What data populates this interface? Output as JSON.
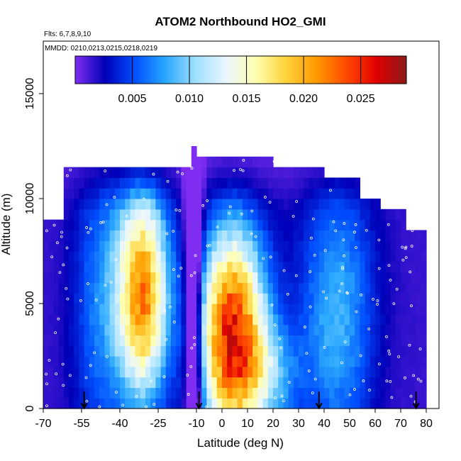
{
  "chart_data": {
    "type": "heatmap",
    "title": "ATOM2 Northbound HO2_GMI",
    "flights_note": "Flts: 6,7,8,9,10",
    "dates_note": "MMDD: 0210,0213,0215,0218,0219",
    "xlabel": "Latitude (deg N)",
    "ylabel": "Altitude (m)",
    "xlim": [
      -70,
      85
    ],
    "ylim": [
      0,
      17500
    ],
    "x_ticks": [
      "-70",
      "-55",
      "-40",
      "-25",
      "-10",
      "0",
      "10",
      "20",
      "30",
      "40",
      "50",
      "60",
      "70",
      "80"
    ],
    "x_tick_values": [
      -70,
      -55,
      -40,
      -25,
      -10,
      0,
      10,
      20,
      30,
      40,
      50,
      60,
      70,
      80
    ],
    "y_ticks": [
      "0",
      "5000",
      "10000",
      "15000"
    ],
    "y_tick_values": [
      0,
      5000,
      10000,
      15000
    ],
    "colorbar": {
      "min": 0.0,
      "max": 0.029,
      "tick_labels": [
        "0.005",
        "0.010",
        "0.015",
        "0.020",
        "0.025"
      ],
      "tick_values": [
        0.005,
        0.01,
        0.015,
        0.02,
        0.025
      ],
      "colors": [
        "#7f2df0",
        "#0000b8",
        "#0050ff",
        "#2aa8ff",
        "#9fe0ff",
        "#eaf6ff",
        "#ffffb0",
        "#ffd23c",
        "#ff9a00",
        "#ff4a00",
        "#e00000",
        "#8b1a1a"
      ]
    },
    "arrow_latitudes": [
      -54,
      -9,
      38,
      76
    ],
    "alt_levels": [
      0,
      500,
      1000,
      1500,
      2000,
      2500,
      3000,
      3500,
      4000,
      4500,
      5000,
      5500,
      6000,
      6500,
      7000,
      7500,
      8000,
      8500,
      9000,
      9500,
      10000,
      10500,
      11000,
      11500,
      12000,
      12500
    ],
    "bin_width_lat": 2,
    "hot_spots": [
      {
        "lat": -31,
        "alt": 6000,
        "value": 0.022
      },
      {
        "lat": 5,
        "alt": 3000,
        "value": 0.026
      }
    ],
    "value_function": "HO2 mixing ratio as a function of latitude and altitude"
  }
}
